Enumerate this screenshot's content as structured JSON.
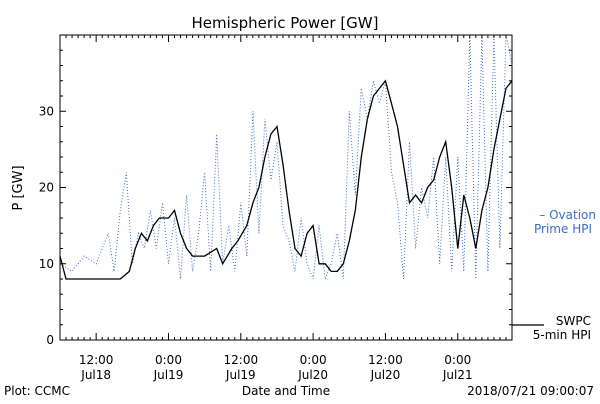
{
  "chart_data": {
    "type": "line",
    "title": "Hemispheric Power [GW]",
    "ylabel": "P [GW]",
    "xlabel": "Date and Time",
    "ylim": [
      0,
      40
    ],
    "xlim": [
      "2018-07-18 06:00",
      "2018-07-21 09:00"
    ],
    "yticks": [
      0,
      10,
      20,
      30
    ],
    "xticks": [
      {
        "time": "2018-07-18 12:00",
        "top": "12:00",
        "bottom": "Jul18"
      },
      {
        "time": "2018-07-19 00:00",
        "top": "0:00",
        "bottom": "Jul19"
      },
      {
        "time": "2018-07-19 12:00",
        "top": "12:00",
        "bottom": "Jul19"
      },
      {
        "time": "2018-07-20 00:00",
        "top": "0:00",
        "bottom": "Jul20"
      },
      {
        "time": "2018-07-20 12:00",
        "top": "12:00",
        "bottom": "Jul20"
      },
      {
        "time": "2018-07-21 00:00",
        "top": "0:00",
        "bottom": "Jul21"
      }
    ],
    "grid": false,
    "series": [
      {
        "name": "SWPC 5-min HPI",
        "legend_lines": [
          "SWPC",
          "5-min HPI"
        ],
        "color": "#000000",
        "style": "solid",
        "points": [
          [
            "2018-07-18 06:00",
            11
          ],
          [
            "2018-07-18 07:00",
            8
          ],
          [
            "2018-07-18 10:00",
            8
          ],
          [
            "2018-07-18 13:00",
            8
          ],
          [
            "2018-07-18 16:00",
            8
          ],
          [
            "2018-07-18 17:30",
            9
          ],
          [
            "2018-07-18 18:30",
            12
          ],
          [
            "2018-07-18 19:30",
            14
          ],
          [
            "2018-07-18 20:30",
            13
          ],
          [
            "2018-07-18 21:30",
            15
          ],
          [
            "2018-07-18 22:30",
            16
          ],
          [
            "2018-07-19 00:00",
            16
          ],
          [
            "2018-07-19 01:00",
            17
          ],
          [
            "2018-07-19 02:00",
            14
          ],
          [
            "2018-07-19 03:00",
            12
          ],
          [
            "2018-07-19 04:00",
            11
          ],
          [
            "2018-07-19 06:00",
            11
          ],
          [
            "2018-07-19 08:00",
            12
          ],
          [
            "2018-07-19 09:00",
            10
          ],
          [
            "2018-07-19 10:30",
            12
          ],
          [
            "2018-07-19 11:30",
            13
          ],
          [
            "2018-07-19 13:00",
            15
          ],
          [
            "2018-07-19 14:00",
            18
          ],
          [
            "2018-07-19 15:00",
            20
          ],
          [
            "2018-07-19 16:00",
            24
          ],
          [
            "2018-07-19 17:00",
            27
          ],
          [
            "2018-07-19 18:00",
            28
          ],
          [
            "2018-07-19 19:00",
            23
          ],
          [
            "2018-07-19 20:00",
            17
          ],
          [
            "2018-07-19 21:00",
            12
          ],
          [
            "2018-07-19 22:00",
            11
          ],
          [
            "2018-07-19 23:00",
            14
          ],
          [
            "2018-07-20 00:00",
            15
          ],
          [
            "2018-07-20 01:00",
            10
          ],
          [
            "2018-07-20 02:00",
            10
          ],
          [
            "2018-07-20 03:00",
            9
          ],
          [
            "2018-07-20 04:00",
            9
          ],
          [
            "2018-07-20 05:00",
            10
          ],
          [
            "2018-07-20 06:00",
            13
          ],
          [
            "2018-07-20 07:00",
            17
          ],
          [
            "2018-07-20 08:00",
            24
          ],
          [
            "2018-07-20 09:00",
            29
          ],
          [
            "2018-07-20 10:00",
            32
          ],
          [
            "2018-07-20 11:00",
            33
          ],
          [
            "2018-07-20 12:00",
            34
          ],
          [
            "2018-07-20 13:00",
            31
          ],
          [
            "2018-07-20 14:00",
            28
          ],
          [
            "2018-07-20 15:00",
            23
          ],
          [
            "2018-07-20 16:00",
            18
          ],
          [
            "2018-07-20 17:00",
            19
          ],
          [
            "2018-07-20 18:00",
            18
          ],
          [
            "2018-07-20 19:00",
            20
          ],
          [
            "2018-07-20 20:00",
            21
          ],
          [
            "2018-07-20 21:00",
            24
          ],
          [
            "2018-07-20 22:00",
            26
          ],
          [
            "2018-07-20 23:00",
            20
          ],
          [
            "2018-07-21 00:00",
            12
          ],
          [
            "2018-07-21 01:00",
            19
          ],
          [
            "2018-07-21 02:00",
            16
          ],
          [
            "2018-07-21 03:00",
            12
          ],
          [
            "2018-07-21 04:00",
            17
          ],
          [
            "2018-07-21 05:00",
            20
          ],
          [
            "2018-07-21 06:00",
            25
          ],
          [
            "2018-07-21 07:00",
            29
          ],
          [
            "2018-07-21 08:00",
            33
          ],
          [
            "2018-07-21 09:00",
            34
          ]
        ]
      },
      {
        "name": "Ovation Prime HPI",
        "legend_lines": [
          "– Ovation",
          "Prime HPI"
        ],
        "color": "#3a6fc4",
        "style": "dotted",
        "points": [
          [
            "2018-07-18 06:00",
            10
          ],
          [
            "2018-07-18 08:00",
            9
          ],
          [
            "2018-07-18 10:00",
            11
          ],
          [
            "2018-07-18 12:00",
            10
          ],
          [
            "2018-07-18 14:00",
            14
          ],
          [
            "2018-07-18 15:00",
            9
          ],
          [
            "2018-07-18 16:00",
            17
          ],
          [
            "2018-07-18 17:00",
            22
          ],
          [
            "2018-07-18 18:00",
            10
          ],
          [
            "2018-07-18 19:00",
            14
          ],
          [
            "2018-07-18 20:00",
            12
          ],
          [
            "2018-07-18 21:00",
            17
          ],
          [
            "2018-07-18 22:00",
            12
          ],
          [
            "2018-07-18 23:00",
            18
          ],
          [
            "2018-07-19 00:00",
            10
          ],
          [
            "2018-07-19 01:00",
            16
          ],
          [
            "2018-07-19 02:00",
            8
          ],
          [
            "2018-07-19 03:00",
            19
          ],
          [
            "2018-07-19 04:00",
            9
          ],
          [
            "2018-07-19 05:00",
            14
          ],
          [
            "2018-07-19 06:00",
            22
          ],
          [
            "2018-07-19 07:00",
            9
          ],
          [
            "2018-07-19 08:00",
            27
          ],
          [
            "2018-07-19 09:00",
            10
          ],
          [
            "2018-07-19 10:00",
            15
          ],
          [
            "2018-07-19 11:00",
            9
          ],
          [
            "2018-07-19 12:00",
            18
          ],
          [
            "2018-07-19 13:00",
            11
          ],
          [
            "2018-07-19 14:00",
            30
          ],
          [
            "2018-07-19 15:00",
            14
          ],
          [
            "2018-07-19 16:00",
            29
          ],
          [
            "2018-07-19 17:00",
            21
          ],
          [
            "2018-07-19 18:00",
            26
          ],
          [
            "2018-07-19 19:00",
            15
          ],
          [
            "2018-07-19 20:00",
            13
          ],
          [
            "2018-07-19 21:00",
            9
          ],
          [
            "2018-07-19 22:00",
            16
          ],
          [
            "2018-07-19 23:00",
            10
          ],
          [
            "2018-07-20 00:00",
            8
          ],
          [
            "2018-07-20 01:00",
            15
          ],
          [
            "2018-07-20 02:00",
            8
          ],
          [
            "2018-07-20 03:00",
            10
          ],
          [
            "2018-07-20 04:00",
            14
          ],
          [
            "2018-07-20 05:00",
            8
          ],
          [
            "2018-07-20 06:00",
            30
          ],
          [
            "2018-07-20 07:00",
            19
          ],
          [
            "2018-07-20 08:00",
            33
          ],
          [
            "2018-07-20 09:00",
            29
          ],
          [
            "2018-07-20 10:00",
            34
          ],
          [
            "2018-07-20 11:00",
            31
          ],
          [
            "2018-07-20 12:00",
            34
          ],
          [
            "2018-07-20 13:00",
            22
          ],
          [
            "2018-07-20 14:00",
            18
          ],
          [
            "2018-07-20 15:00",
            8
          ],
          [
            "2018-07-20 16:00",
            26
          ],
          [
            "2018-07-20 17:00",
            12
          ],
          [
            "2018-07-20 18:00",
            20
          ],
          [
            "2018-07-20 19:00",
            16
          ],
          [
            "2018-07-20 20:00",
            24
          ],
          [
            "2018-07-20 21:00",
            10
          ],
          [
            "2018-07-20 22:00",
            24
          ],
          [
            "2018-07-20 23:00",
            9
          ],
          [
            "2018-07-21 00:00",
            24
          ],
          [
            "2018-07-21 01:00",
            9
          ],
          [
            "2018-07-21 02:00",
            40
          ],
          [
            "2018-07-21 03:00",
            8
          ],
          [
            "2018-07-21 04:00",
            40
          ],
          [
            "2018-07-21 05:00",
            9
          ],
          [
            "2018-07-21 06:00",
            40
          ],
          [
            "2018-07-21 07:00",
            12
          ],
          [
            "2018-07-21 08:00",
            40
          ],
          [
            "2018-07-21 09:00",
            36
          ]
        ]
      }
    ]
  },
  "footer": {
    "plot_credit": "Plot: CCMC",
    "timestamp": "2018/07/21 09:00:07"
  }
}
